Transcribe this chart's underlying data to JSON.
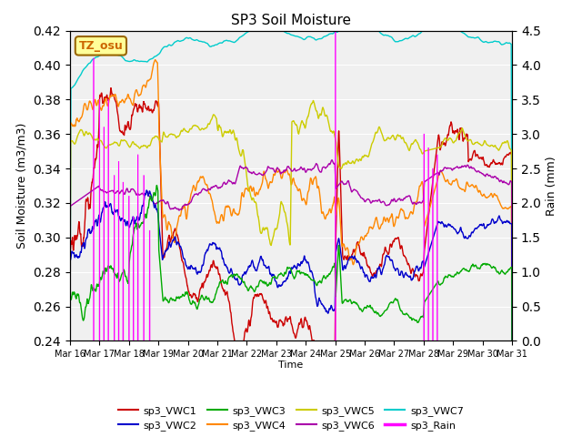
{
  "title": "SP3 Soil Moisture",
  "xlabel": "Time",
  "ylabel_left": "Soil Moisture (m3/m3)",
  "ylabel_right": "Rain (mm)",
  "ylim_left": [
    0.24,
    0.42
  ],
  "ylim_right": [
    0.0,
    4.5
  ],
  "xtick_labels": [
    "Mar 16",
    "Mar 17",
    "Mar 18",
    "Mar 19",
    "Mar 20",
    "Mar 21",
    "Mar 22",
    "Mar 23",
    "Mar 24",
    "Mar 25",
    "Mar 26",
    "Mar 27",
    "Mar 28",
    "Mar 29",
    "Mar 30",
    "Mar 31"
  ],
  "bg_color": "#ffffff",
  "plot_bg": "#f0f0f0",
  "legend_entries": [
    "sp3_VWC1",
    "sp3_VWC2",
    "sp3_VWC3",
    "sp3_VWC4",
    "sp3_VWC5",
    "sp3_VWC6",
    "sp3_VWC7",
    "sp3_Rain"
  ],
  "colors": {
    "VWC1": "#cc0000",
    "VWC2": "#0000cc",
    "VWC3": "#00aa00",
    "VWC4": "#ff8800",
    "VWC5": "#cccc00",
    "VWC6": "#aa00aa",
    "VWC7": "#00cccc",
    "Rain": "#ff00ff"
  },
  "annotation_text": "TZ_osu",
  "annotation_color": "#cc6600",
  "annotation_bg": "#ffff99"
}
